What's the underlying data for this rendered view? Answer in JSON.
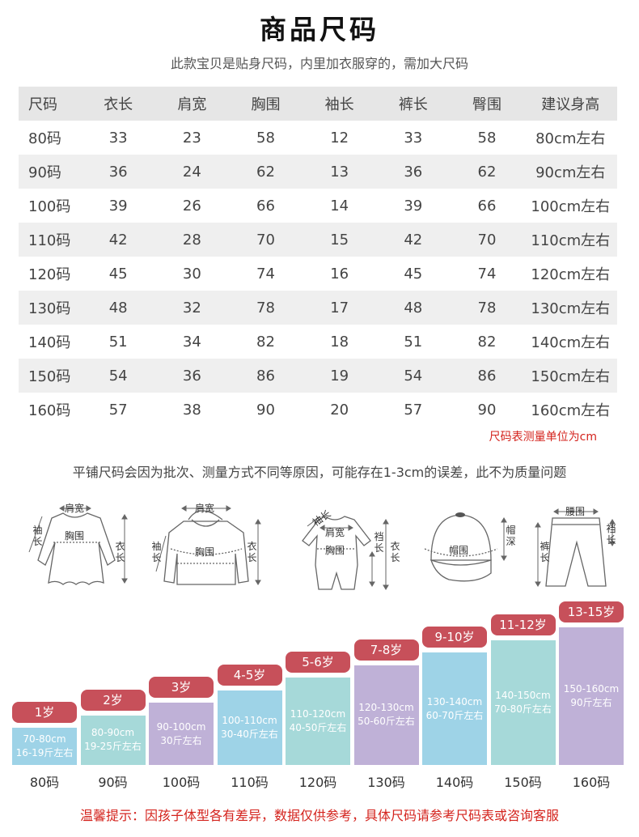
{
  "title": "商品尺码",
  "subtitle": "此款宝贝是贴身尺码，内里加衣服穿的，需加大尺码",
  "table": {
    "headers": [
      "尺码",
      "衣长",
      "肩宽",
      "胸围",
      "袖长",
      "裤长",
      "臀围",
      "建议身高"
    ],
    "rows": [
      [
        "80码",
        "33",
        "23",
        "58",
        "12",
        "33",
        "58",
        "80cm左右"
      ],
      [
        "90码",
        "36",
        "24",
        "62",
        "13",
        "36",
        "62",
        "90cm左右"
      ],
      [
        "100码",
        "39",
        "26",
        "66",
        "14",
        "39",
        "66",
        "100cm左右"
      ],
      [
        "110码",
        "42",
        "28",
        "70",
        "15",
        "42",
        "70",
        "110cm左右"
      ],
      [
        "120码",
        "45",
        "30",
        "74",
        "16",
        "45",
        "74",
        "120cm左右"
      ],
      [
        "130码",
        "48",
        "32",
        "78",
        "17",
        "48",
        "78",
        "130cm左右"
      ],
      [
        "140码",
        "51",
        "34",
        "82",
        "18",
        "51",
        "82",
        "140cm左右"
      ],
      [
        "150码",
        "54",
        "36",
        "86",
        "19",
        "54",
        "86",
        "150cm左右"
      ],
      [
        "160码",
        "57",
        "38",
        "90",
        "20",
        "57",
        "90",
        "160cm左右"
      ]
    ]
  },
  "unit_note": "尺码表测量单位为cm",
  "error_note": "平铺尺码会因为批次、测量方式不同等原因，可能存在1-3cm的误差，此不为质量问题",
  "diagrams": {
    "dress": {
      "shoulder": "肩宽",
      "chest": "胸围",
      "sleeve": "袖长",
      "length": "衣长"
    },
    "hoodie": {
      "shoulder": "肩宽",
      "chest": "胸围",
      "sleeve": "袖长",
      "length": "衣长"
    },
    "romper": {
      "sleeve": "袖长",
      "shoulder": "肩宽",
      "chest": "胸围",
      "crotch": "裆长",
      "length": "衣长"
    },
    "hat": {
      "circumference": "帽围",
      "depth": "帽深"
    },
    "pants": {
      "waist": "腰围",
      "length": "裤长",
      "crotch": "裆长"
    }
  },
  "height_chart": {
    "colors": {
      "age_tag": "#c7505a",
      "blue": "#9ed3e7",
      "purple": "#bfb1d7",
      "teal": "#a6d9d9"
    },
    "items": [
      {
        "age": "1岁",
        "range": "70-80cm",
        "weight": "16-19斤左右",
        "size": "80码",
        "level": 1,
        "color": "blue"
      },
      {
        "age": "2岁",
        "range": "80-90cm",
        "weight": "19-25斤左右",
        "size": "90码",
        "level": 2,
        "color": "teal"
      },
      {
        "age": "3岁",
        "range": "90-100cm",
        "weight": "30斤左右",
        "size": "100码",
        "level": 3,
        "color": "purple"
      },
      {
        "age": "4-5岁",
        "range": "100-110cm",
        "weight": "30-40斤左右",
        "size": "110码",
        "level": 4,
        "color": "blue"
      },
      {
        "age": "5-6岁",
        "range": "110-120cm",
        "weight": "40-50斤左右",
        "size": "120码",
        "level": 5,
        "color": "teal"
      },
      {
        "age": "7-8岁",
        "range": "120-130cm",
        "weight": "50-60斤左右",
        "size": "130码",
        "level": 6,
        "color": "purple"
      },
      {
        "age": "9-10岁",
        "range": "130-140cm",
        "weight": "60-70斤左右",
        "size": "140码",
        "level": 7,
        "color": "blue"
      },
      {
        "age": "11-12岁",
        "range": "140-150cm",
        "weight": "70-80斤左右",
        "size": "150码",
        "level": 8,
        "color": "teal"
      },
      {
        "age": "13-15岁",
        "range": "150-160cm",
        "weight": "90斤左右",
        "size": "160码",
        "level": 9,
        "color": "purple"
      }
    ]
  },
  "footer": "温馨提示：因孩子体型各有差异，数据仅供参考，具体尺码请参考尺码表或咨询客服"
}
